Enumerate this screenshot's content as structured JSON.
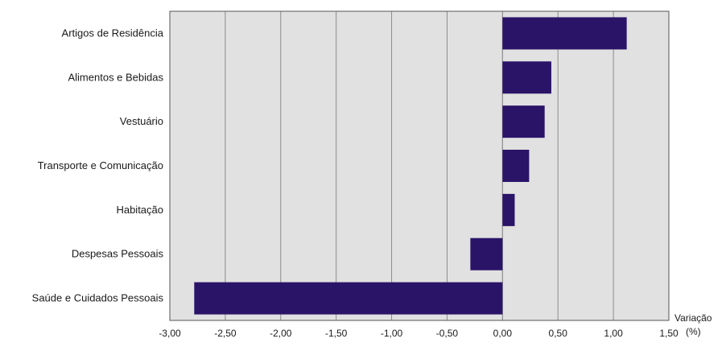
{
  "chart_data": {
    "type": "bar",
    "orientation": "horizontal",
    "title": "",
    "xlabel": "Variação",
    "xlabel_unit": "(%)",
    "ylabel": "",
    "categories": [
      "Artigos de Residência",
      "Alimentos e Bebidas",
      "Vestuário",
      "Transporte e Comunicação",
      "Habitação",
      "Despesas Pessoais",
      "Saúde e Cuidados Pessoais"
    ],
    "values": [
      1.12,
      0.44,
      0.38,
      0.24,
      0.11,
      -0.29,
      -2.78
    ],
    "xlim": [
      -3.0,
      1.5
    ],
    "ticks": [
      -3.0,
      -2.5,
      -2.0,
      -1.5,
      -1.0,
      -0.5,
      0.0,
      0.5,
      1.0,
      1.5
    ],
    "tick_labels": [
      "-3,00",
      "-2,50",
      "-2,00",
      "-1,50",
      "-1,00",
      "-0,50",
      "0,00",
      "0,50",
      "1,00",
      "1,50"
    ],
    "grid": true,
    "colors": {
      "bar": "#2a1468",
      "plot_background": "#e1e1e1",
      "gridline": "#8c8c8c",
      "frame": "#555555"
    }
  }
}
